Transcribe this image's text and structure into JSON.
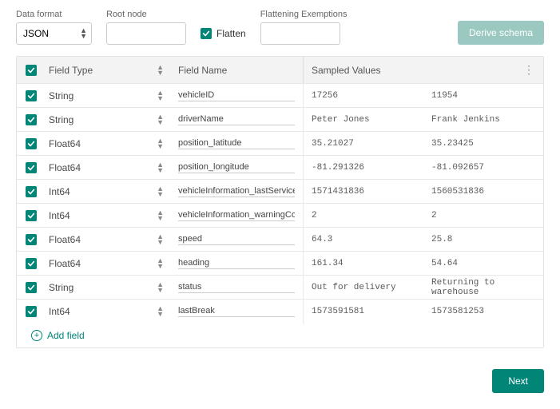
{
  "controls": {
    "data_format_label": "Data format",
    "data_format_value": "JSON",
    "root_node_label": "Root node",
    "root_node_value": "",
    "flatten_label": "Flatten",
    "flatten_checked": true,
    "flattening_exemptions_label": "Flattening Exemptions",
    "flattening_exemptions_value": "",
    "derive_button": "Derive schema"
  },
  "table": {
    "header": {
      "field_type": "Field Type",
      "field_name": "Field Name",
      "sampled_values": "Sampled Values"
    },
    "rows": [
      {
        "checked": true,
        "type": "String",
        "name": "vehicleID",
        "v1": "17256",
        "v2": "11954"
      },
      {
        "checked": true,
        "type": "String",
        "name": "driverName",
        "v1": "Peter Jones",
        "v2": "Frank Jenkins"
      },
      {
        "checked": true,
        "type": "Float64",
        "name": "position_latitude",
        "v1": "35.21027",
        "v2": "35.23425"
      },
      {
        "checked": true,
        "type": "Float64",
        "name": "position_longitude",
        "v1": "-81.291326",
        "v2": "-81.092657"
      },
      {
        "checked": true,
        "type": "Int64",
        "name": "vehicleInformation_lastService",
        "v1": "1571431836",
        "v2": "1560531836"
      },
      {
        "checked": true,
        "type": "Int64",
        "name": "vehicleInformation_warningCod",
        "v1": "2",
        "v2": "2"
      },
      {
        "checked": true,
        "type": "Float64",
        "name": "speed",
        "v1": "64.3",
        "v2": "25.8"
      },
      {
        "checked": true,
        "type": "Float64",
        "name": "heading",
        "v1": "161.34",
        "v2": "54.64"
      },
      {
        "checked": true,
        "type": "String",
        "name": "status",
        "v1": "Out for delivery",
        "v2": "Returning to warehouse"
      },
      {
        "checked": true,
        "type": "Int64",
        "name": "lastBreak",
        "v1": "1573591581",
        "v2": "1573581253"
      }
    ],
    "add_field": "Add field"
  },
  "footer": {
    "next": "Next"
  },
  "colors": {
    "accent": "#008577",
    "muted_accent": "#9bc9c2"
  }
}
